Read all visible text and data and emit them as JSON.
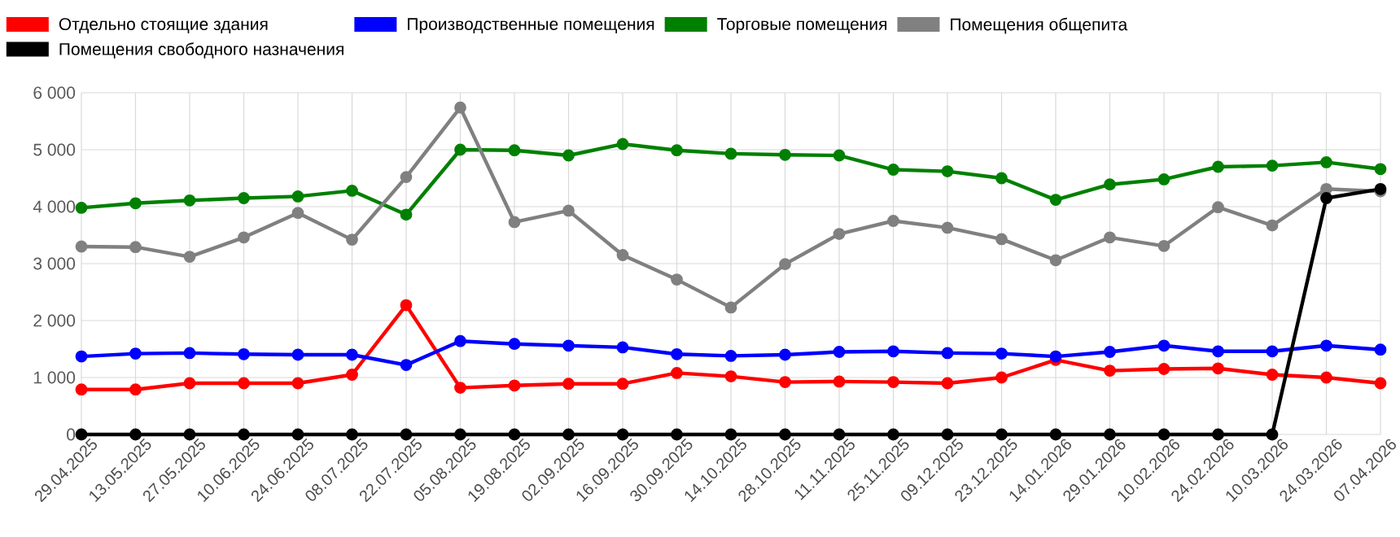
{
  "chart_data": {
    "type": "line",
    "categories": [
      "29.04.2025",
      "13.05.2025",
      "27.05.2025",
      "10.06.2025",
      "24.06.2025",
      "08.07.2025",
      "22.07.2025",
      "05.08.2025",
      "19.08.2025",
      "02.09.2025",
      "16.09.2025",
      "30.09.2025",
      "14.10.2025",
      "28.10.2025",
      "11.11.2025",
      "25.11.2025",
      "09.12.2025",
      "23.12.2025",
      "14.01.2026",
      "29.01.2026",
      "10.02.2026",
      "24.02.2026",
      "10.03.2026",
      "24.03.2026",
      "07.04.2026"
    ],
    "series": [
      {
        "name": "Отдельно стоящие здания",
        "color": "#ff0000",
        "values": [
          790,
          790,
          900,
          900,
          900,
          1050,
          2270,
          820,
          860,
          890,
          890,
          1080,
          1020,
          920,
          930,
          920,
          900,
          1000,
          1310,
          1120,
          1150,
          1160,
          1050,
          1000,
          900
        ]
      },
      {
        "name": "Производственные помещения",
        "color": "#0000ff",
        "values": [
          1370,
          1420,
          1430,
          1410,
          1400,
          1400,
          1220,
          1640,
          1590,
          1560,
          1530,
          1410,
          1380,
          1400,
          1450,
          1460,
          1430,
          1420,
          1370,
          1450,
          1560,
          1460,
          1460,
          1560,
          1490
        ]
      },
      {
        "name": "Торговые помещения",
        "color": "#008000",
        "values": [
          3980,
          4060,
          4110,
          4150,
          4180,
          4280,
          3860,
          5000,
          4990,
          4900,
          5100,
          4990,
          4930,
          4910,
          4900,
          4650,
          4620,
          4500,
          4120,
          4390,
          4480,
          4700,
          4720,
          4780,
          4660
        ]
      },
      {
        "name": "Помещения общепита",
        "color": "#808080",
        "values": [
          3300,
          3290,
          3120,
          3460,
          3890,
          3420,
          4520,
          5740,
          3730,
          3930,
          3150,
          2720,
          2230,
          2990,
          3520,
          3750,
          3630,
          3430,
          3060,
          3460,
          3310,
          3990,
          3670,
          4310,
          4270
        ]
      },
      {
        "name": "Помещения свободного назначения",
        "color": "#000000",
        "values": [
          0,
          0,
          0,
          0,
          0,
          0,
          0,
          0,
          0,
          0,
          0,
          0,
          0,
          0,
          0,
          0,
          0,
          0,
          0,
          0,
          0,
          0,
          0,
          4150,
          4310
        ]
      }
    ],
    "ylim": [
      0,
      6000
    ],
    "yticks": [
      0,
      {
        "value": 1000,
        "label": "1 000"
      },
      {
        "value": 2000,
        "label": "2 000"
      },
      {
        "value": 3000,
        "label": "3 000"
      },
      {
        "value": 4000,
        "label": "4 000"
      },
      {
        "value": 5000,
        "label": "5 000"
      },
      {
        "value": 6000,
        "label": "6 000"
      }
    ],
    "grid": true,
    "legend": "top left",
    "marker": "circle",
    "line_style": "solid"
  }
}
